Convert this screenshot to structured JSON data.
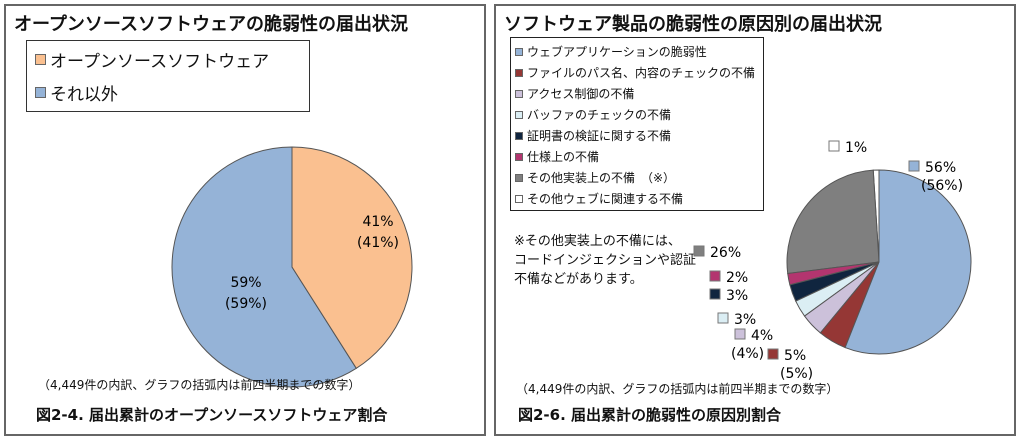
{
  "chart_data": [
    {
      "type": "pie",
      "title": "オープンソースソフトウェアの脆弱性の届出状況",
      "slices": [
        {
          "name": "オープンソースソフトウェア",
          "value": 41,
          "label": "41%",
          "prev": "(41%)",
          "color": "#fac090"
        },
        {
          "name": "それ以外",
          "value": 59,
          "label": "59%",
          "prev": "(59%)",
          "color": "#95b3d7"
        }
      ],
      "note": "（4,449件の内訳、グラフの括弧内は前四半期までの数字）",
      "caption": "図2-4. 届出累計のオープンソースソフトウェア割合"
    },
    {
      "type": "pie",
      "title": "ソフトウェア製品の脆弱性の原因別の届出状況",
      "slices": [
        {
          "name": "ウェブアプリケーションの脆弱性",
          "value": 56,
          "label": "56%",
          "prev": "(56%)",
          "color": "#95b3d7"
        },
        {
          "name": "ファイルのパス名、内容のチェックの不備",
          "value": 5,
          "label": "5%",
          "prev": "(5%)",
          "color": "#953735"
        },
        {
          "name": "アクセス制御の不備",
          "value": 4,
          "label": "4%",
          "prev": "(4%)",
          "color": "#ccc1da"
        },
        {
          "name": "バッファのチェックの不備",
          "value": 3,
          "label": "3%",
          "prev": "",
          "color": "#dbeef4"
        },
        {
          "name": "証明書の検証に関する不備",
          "value": 3,
          "label": "3%",
          "prev": "",
          "color": "#10253f"
        },
        {
          "name": "仕様上の不備",
          "value": 2,
          "label": "2%",
          "prev": "",
          "color": "#b3356f"
        },
        {
          "name": "その他実装上の不備　（※）",
          "value": 26,
          "label": "26%",
          "prev": "",
          "color": "#7f7f7f"
        },
        {
          "name": "その他ウェブに関連する不備",
          "value": 1,
          "label": "1%",
          "prev": "",
          "color": "#ffffff"
        }
      ],
      "annotation": [
        "※その他実装上の不備には、",
        "コードインジェクションや認証",
        "不備などがあります。"
      ],
      "note": "（4,449件の内訳、グラフの括弧内は前四半期までの数字）",
      "caption": "図2-6. 届出累計の脆弱性の原因別割合"
    }
  ]
}
